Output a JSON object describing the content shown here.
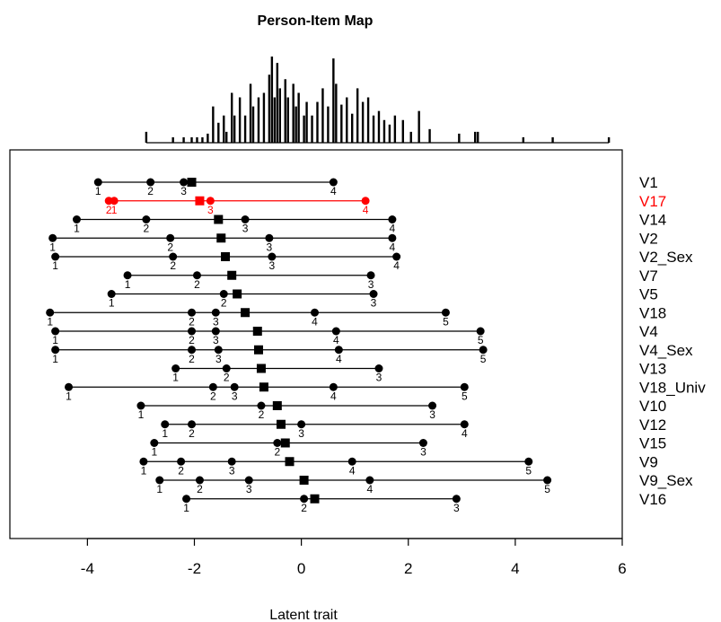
{
  "chart_data": {
    "type": "person-item-map",
    "title": "Person-Item Map",
    "xlabel": "Latent trait",
    "xlim": [
      -5.45,
      6.0
    ],
    "x_ticks": [
      -4,
      -2,
      0,
      2,
      4,
      6
    ],
    "x_tick_labels": [
      "-4",
      "-2",
      "0",
      "2",
      "4",
      "6"
    ],
    "grid": false,
    "highlight_color": "#ff0000",
    "default_color": "#000000",
    "person_distribution": [
      [
        -2.9,
        0.12
      ],
      [
        -2.4,
        0.06
      ],
      [
        -2.2,
        0.06
      ],
      [
        -2.05,
        0.06
      ],
      [
        -1.95,
        0.06
      ],
      [
        -1.85,
        0.06
      ],
      [
        -1.75,
        0.1
      ],
      [
        -1.65,
        0.4
      ],
      [
        -1.55,
        0.22
      ],
      [
        -1.45,
        0.3
      ],
      [
        -1.4,
        0.12
      ],
      [
        -1.3,
        0.55
      ],
      [
        -1.25,
        0.3
      ],
      [
        -1.15,
        0.5
      ],
      [
        -1.05,
        0.3
      ],
      [
        -0.95,
        0.65
      ],
      [
        -0.9,
        0.4
      ],
      [
        -0.8,
        0.5
      ],
      [
        -0.7,
        0.55
      ],
      [
        -0.6,
        0.75
      ],
      [
        -0.55,
        0.95
      ],
      [
        -0.5,
        0.5
      ],
      [
        -0.45,
        0.88
      ],
      [
        -0.4,
        0.6
      ],
      [
        -0.3,
        0.7
      ],
      [
        -0.25,
        0.5
      ],
      [
        -0.15,
        0.65
      ],
      [
        -0.1,
        0.4
      ],
      [
        -0.05,
        0.55
      ],
      [
        0.05,
        0.3
      ],
      [
        0.1,
        0.45
      ],
      [
        0.2,
        0.3
      ],
      [
        0.3,
        0.45
      ],
      [
        0.4,
        0.6
      ],
      [
        0.5,
        0.4
      ],
      [
        0.6,
        0.93
      ],
      [
        0.65,
        0.65
      ],
      [
        0.75,
        0.42
      ],
      [
        0.85,
        0.5
      ],
      [
        0.95,
        0.32
      ],
      [
        1.05,
        0.6
      ],
      [
        1.15,
        0.45
      ],
      [
        1.25,
        0.5
      ],
      [
        1.35,
        0.3
      ],
      [
        1.45,
        0.35
      ],
      [
        1.55,
        0.25
      ],
      [
        1.65,
        0.2
      ],
      [
        1.75,
        0.3
      ],
      [
        1.9,
        0.25
      ],
      [
        2.05,
        0.12
      ],
      [
        2.2,
        0.35
      ],
      [
        2.4,
        0.15
      ],
      [
        2.95,
        0.1
      ],
      [
        3.25,
        0.12
      ],
      [
        3.3,
        0.12
      ],
      [
        4.15,
        0.06
      ],
      [
        4.7,
        0.06
      ],
      [
        5.75,
        0.06
      ]
    ],
    "items": [
      {
        "name": "V1",
        "location": -2.05,
        "thresholds": [
          -3.8,
          -2.82,
          -2.2,
          0.6
        ],
        "threshold_labels": [
          "1",
          "2",
          "3",
          "4"
        ],
        "highlight": false
      },
      {
        "name": "V17",
        "location": -1.9,
        "thresholds": [
          -3.5,
          -3.6,
          -1.7,
          1.2
        ],
        "threshold_labels": [
          "1",
          "2",
          "3",
          "4"
        ],
        "highlight": true
      },
      {
        "name": "V14",
        "location": -1.55,
        "thresholds": [
          -4.2,
          -2.9,
          -1.05,
          1.7
        ],
        "threshold_labels": [
          "1",
          "2",
          "3",
          "4"
        ],
        "highlight": false
      },
      {
        "name": "V2",
        "location": -1.5,
        "thresholds": [
          -4.65,
          -2.45,
          -0.6,
          1.7
        ],
        "threshold_labels": [
          "1",
          "2",
          "3",
          "4"
        ],
        "highlight": false
      },
      {
        "name": "V2_Sex",
        "location": -1.42,
        "thresholds": [
          -4.6,
          -2.4,
          -0.55,
          1.78
        ],
        "threshold_labels": [
          "1",
          "2",
          "3",
          "4"
        ],
        "highlight": false
      },
      {
        "name": "V7",
        "location": -1.3,
        "thresholds": [
          -3.25,
          -1.95,
          1.3
        ],
        "threshold_labels": [
          "1",
          "2",
          "3"
        ],
        "highlight": false
      },
      {
        "name": "V5",
        "location": -1.2,
        "thresholds": [
          -3.55,
          -1.45,
          1.35
        ],
        "threshold_labels": [
          "1",
          "2",
          "3"
        ],
        "highlight": false
      },
      {
        "name": "V18",
        "location": -1.05,
        "thresholds": [
          -4.7,
          -2.05,
          -1.6,
          0.25,
          2.7
        ],
        "threshold_labels": [
          "1",
          "2",
          "3",
          "4",
          "5"
        ],
        "highlight": false
      },
      {
        "name": "V4",
        "location": -0.82,
        "thresholds": [
          -4.6,
          -2.05,
          -1.6,
          0.65,
          3.35
        ],
        "threshold_labels": [
          "1",
          "2",
          "3",
          "4",
          "5"
        ],
        "highlight": false
      },
      {
        "name": "V4_Sex",
        "location": -0.8,
        "thresholds": [
          -4.6,
          -2.05,
          -1.55,
          0.7,
          3.4
        ],
        "threshold_labels": [
          "1",
          "2",
          "3",
          "4",
          "5"
        ],
        "highlight": false
      },
      {
        "name": "V13",
        "location": -0.75,
        "thresholds": [
          -2.35,
          -1.4,
          1.45
        ],
        "threshold_labels": [
          "1",
          "2",
          "3"
        ],
        "highlight": false
      },
      {
        "name": "V18_Univ",
        "location": -0.7,
        "thresholds": [
          -4.35,
          -1.65,
          -1.25,
          0.6,
          3.05
        ],
        "threshold_labels": [
          "1",
          "2",
          "3",
          "4",
          "5"
        ],
        "highlight": false
      },
      {
        "name": "V10",
        "location": -0.45,
        "thresholds": [
          -3.0,
          -0.75,
          2.45
        ],
        "threshold_labels": [
          "1",
          "2",
          "3"
        ],
        "highlight": false
      },
      {
        "name": "V12",
        "location": -0.38,
        "thresholds": [
          -2.55,
          -2.05,
          -0.0,
          3.05
        ],
        "threshold_labels": [
          "1",
          "2",
          "3",
          "4"
        ],
        "highlight": false
      },
      {
        "name": "V15",
        "location": -0.3,
        "thresholds": [
          -2.75,
          -0.45,
          2.28
        ],
        "threshold_labels": [
          "1",
          "2",
          "3"
        ],
        "highlight": false
      },
      {
        "name": "V9",
        "location": -0.22,
        "thresholds": [
          -2.95,
          -2.25,
          -1.3,
          0.95,
          4.25
        ],
        "threshold_labels": [
          "1",
          "2",
          "3",
          "4",
          "5"
        ],
        "highlight": false
      },
      {
        "name": "V9_Sex",
        "location": 0.05,
        "thresholds": [
          -2.65,
          -1.9,
          -0.98,
          1.28,
          4.6
        ],
        "threshold_labels": [
          "1",
          "2",
          "3",
          "4",
          "5"
        ],
        "highlight": false
      },
      {
        "name": "V16",
        "location": 0.25,
        "thresholds": [
          -2.15,
          0.05,
          2.9
        ],
        "threshold_labels": [
          "1",
          "2",
          "3"
        ],
        "highlight": false
      }
    ]
  }
}
